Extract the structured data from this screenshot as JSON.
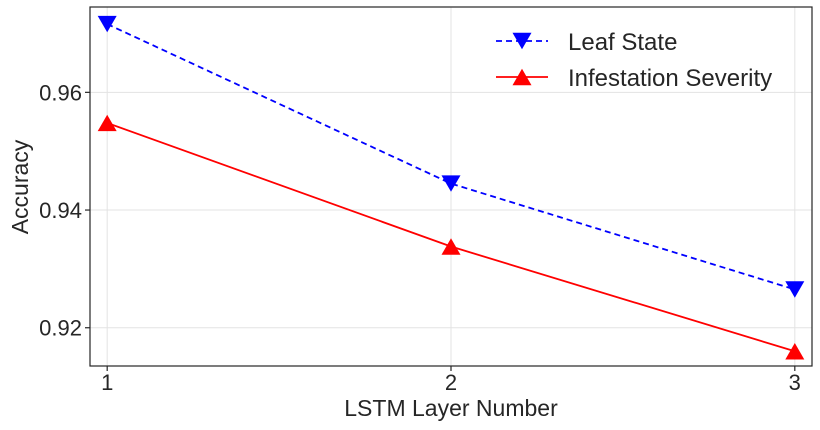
{
  "chart_data": {
    "type": "line",
    "title": "",
    "xlabel": "LSTM Layer Number",
    "ylabel": "Accuracy",
    "x": [
      1,
      2,
      3
    ],
    "x_ticks": [
      "1",
      "2",
      "3"
    ],
    "y_ticks": [
      "0.92",
      "0.94",
      "0.96"
    ],
    "xlim": [
      0.95,
      3.05
    ],
    "ylim": [
      0.9135,
      0.9745
    ],
    "grid": true,
    "legend_position": "top-right",
    "series": [
      {
        "name": "Leaf State",
        "values": [
          0.9716,
          0.9445,
          0.9265
        ],
        "color": "#0000ff",
        "line_style": "dashed",
        "marker": "triangle-down"
      },
      {
        "name": "Infestation Severity",
        "values": [
          0.9548,
          0.9338,
          0.916
        ],
        "color": "#ff0000",
        "line_style": "solid",
        "marker": "triangle-up"
      }
    ]
  }
}
